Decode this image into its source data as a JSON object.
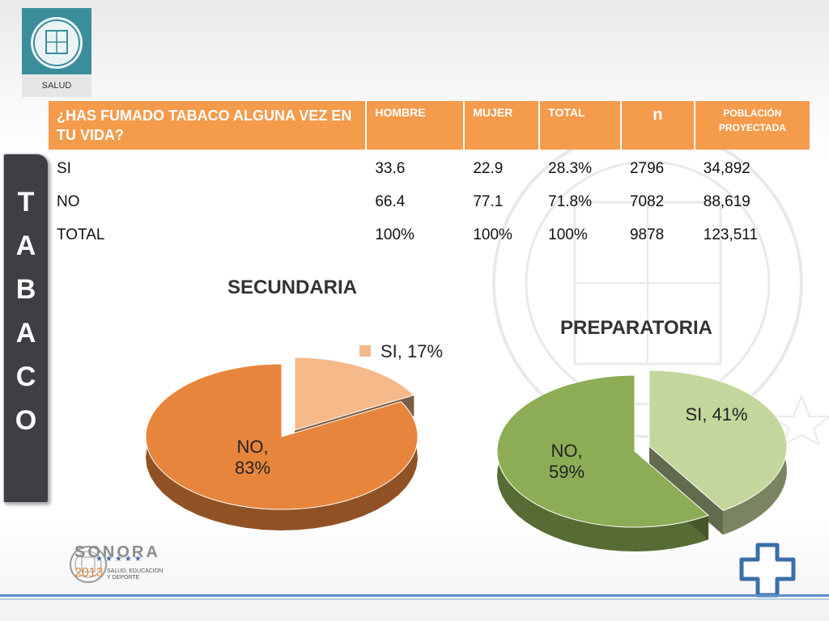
{
  "logo": {
    "label": "SALUD"
  },
  "side_title": [
    "T",
    "A",
    "B",
    "A",
    "C",
    "O"
  ],
  "table": {
    "headers": {
      "question": "¿HAS FUMADO TABACO ALGUNA VEZ EN TU VIDA?",
      "hombre": "HOMBRE",
      "mujer": "MUJER",
      "total": "TOTAL",
      "n": "n",
      "poblacion": "POBLACIÓN PROYECTADA"
    },
    "rows": [
      {
        "label": "SI",
        "hombre": "33.6",
        "mujer": "22.9",
        "total": "28.3%",
        "n": "2796",
        "poblacion": "34,892"
      },
      {
        "label": "NO",
        "hombre": "66.4",
        "mujer": "77.1",
        "total": "71.8%",
        "n": "7082",
        "poblacion": "88,619"
      },
      {
        "label": "TOTAL",
        "hombre": "100%",
        "mujer": "100%",
        "total": "100%",
        "n": "9878",
        "poblacion": "123,511"
      }
    ]
  },
  "chart_data": [
    {
      "type": "pie",
      "title": "SECUNDARIA",
      "categories": [
        "SI",
        "NO"
      ],
      "values": [
        17,
        83
      ],
      "labels": [
        "SI, 17%",
        "NO, 83%"
      ],
      "colors": [
        "#f5b98a",
        "#e8853c"
      ],
      "legend": "top-right"
    },
    {
      "type": "pie",
      "title": "PREPARATORIA",
      "categories": [
        "SI",
        "NO"
      ],
      "values": [
        41,
        59
      ],
      "labels": [
        "SI, 41%",
        "NO, 59%"
      ],
      "colors": [
        "#c3d69b",
        "#8cad55"
      ]
    }
  ],
  "footer": {
    "brand": "SONORA",
    "year": "2013",
    "tagline": "SALUD, EDUCACIÓN Y DEPORTE"
  }
}
